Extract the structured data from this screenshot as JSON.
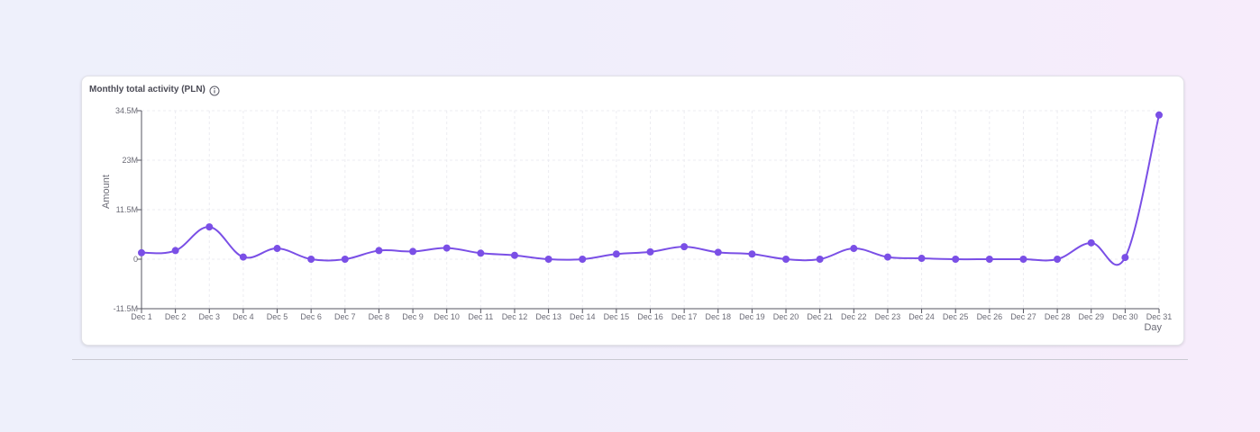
{
  "card": {
    "title": "Monthly total activity (PLN)",
    "info_icon": "info-icon"
  },
  "colors": {
    "line": "#7a4fe6",
    "point": "#7a4fe6",
    "grid": "#ececf1",
    "axis": "#555560"
  },
  "chart_data": {
    "type": "line",
    "xlabel": "Day",
    "ylabel": "Amount",
    "ylim": [
      -11500000,
      34500000
    ],
    "yticks": [
      {
        "value": 34500000,
        "label": "34.5M"
      },
      {
        "value": 23000000,
        "label": "23M"
      },
      {
        "value": 11500000,
        "label": "11.5M"
      },
      {
        "value": 0,
        "label": "0"
      },
      {
        "value": -11500000,
        "label": "-11.5M"
      }
    ],
    "grid": true,
    "categories": [
      "Dec 1",
      "Dec 2",
      "Dec 3",
      "Dec 4",
      "Dec 5",
      "Dec 6",
      "Dec 7",
      "Dec 8",
      "Dec 9",
      "Dec 10",
      "Dec 11",
      "Dec 12",
      "Dec 13",
      "Dec 14",
      "Dec 15",
      "Dec 16",
      "Dec 17",
      "Dec 18",
      "Dec 19",
      "Dec 20",
      "Dec 21",
      "Dec 22",
      "Dec 23",
      "Dec 24",
      "Dec 25",
      "Dec 26",
      "Dec 27",
      "Dec 28",
      "Dec 29",
      "Dec 30",
      "Dec 31"
    ],
    "series": [
      {
        "values": [
          1500000,
          2000000,
          7500000,
          500000,
          2500000,
          0,
          0,
          2000000,
          1800000,
          2600000,
          1400000,
          900000,
          0,
          0,
          1200000,
          1700000,
          2900000,
          1600000,
          1200000,
          0,
          0,
          2500000,
          500000,
          200000,
          0,
          0,
          0,
          0,
          3800000,
          400000,
          33500000
        ]
      }
    ]
  }
}
